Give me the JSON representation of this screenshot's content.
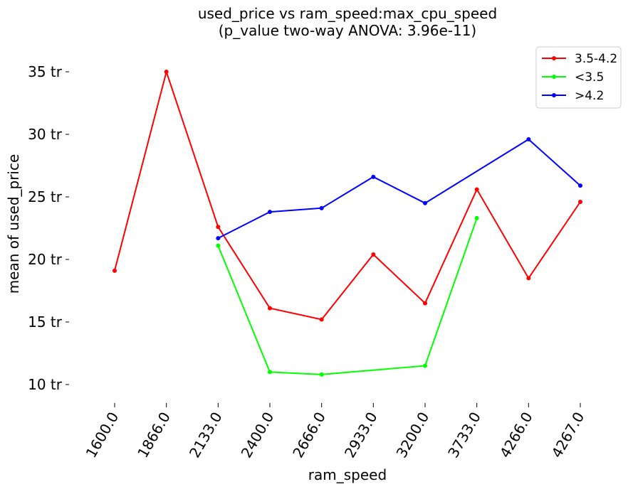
{
  "chart_data": {
    "type": "line",
    "title_line1": "used_price vs ram_speed:max_cpu_speed",
    "title_line2": "(p_value two-way ANOVA: 3.96e-11)",
    "xlabel": "ram_speed",
    "ylabel": "mean of used_price",
    "categories": [
      "1600.0",
      "1866.0",
      "2133.0",
      "2400.0",
      "2666.0",
      "2933.0",
      "3200.0",
      "3733.0",
      "4266.0",
      "4267.0"
    ],
    "yticks": [
      10,
      15,
      20,
      25,
      30,
      35
    ],
    "ytick_labels": [
      "10 tr",
      "15 tr",
      "20 tr",
      "25 tr",
      "30 tr",
      "35 tr"
    ],
    "ylim": [
      8.5,
      37.2
    ],
    "grid": false,
    "legend_position": "top-right",
    "series": [
      {
        "name": "3.5-4.2",
        "color": "#ff0000",
        "values": [
          19.1,
          35.0,
          22.6,
          16.1,
          15.2,
          20.4,
          16.5,
          25.6,
          18.5,
          24.6
        ]
      },
      {
        "name": "<3.5",
        "color": "#00ff00",
        "values": [
          null,
          null,
          21.1,
          11.0,
          10.8,
          null,
          11.5,
          23.3,
          null,
          null
        ]
      },
      {
        "name": ">4.2",
        "color": "#0000ff",
        "values": [
          null,
          null,
          21.7,
          23.8,
          24.1,
          26.6,
          24.5,
          null,
          29.6,
          25.9
        ]
      }
    ]
  }
}
